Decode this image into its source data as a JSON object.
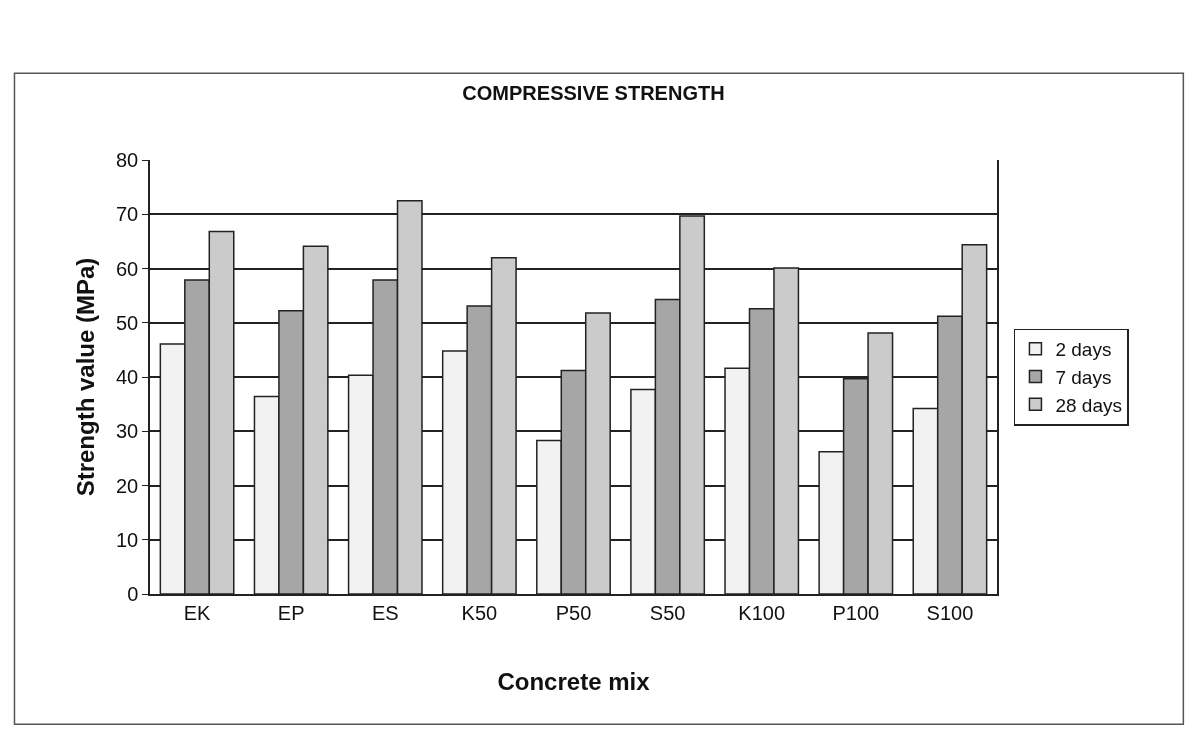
{
  "chart_data": {
    "type": "bar",
    "title": "COMPRESSIVE STRENGTH",
    "xlabel": "Concrete mix",
    "ylabel": "Strength value (MPa)",
    "categories": [
      "EK",
      "EP",
      "ES",
      "K50",
      "P50",
      "S50",
      "K100",
      "P100",
      "S100"
    ],
    "series": [
      {
        "name": "2 days",
        "color": "#f2f2f2",
        "values": [
          46.1,
          36.4,
          40.3,
          44.8,
          28.3,
          37.7,
          41.6,
          26.2,
          34.2
        ]
      },
      {
        "name": "7 days",
        "color": "#a6a6a6",
        "values": [
          57.9,
          52.2,
          57.9,
          53.1,
          41.2,
          54.3,
          52.6,
          39.7,
          51.2
        ]
      },
      {
        "name": "28 days",
        "color": "#cbcbcb",
        "values": [
          66.8,
          64.1,
          72.5,
          62.0,
          51.8,
          69.7,
          60.1,
          48.1,
          64.4
        ]
      }
    ],
    "ylim": [
      0,
      80
    ],
    "yticks": [
      0,
      10,
      20,
      30,
      40,
      50,
      60,
      70,
      80
    ],
    "grid": "y",
    "legend": "right"
  }
}
